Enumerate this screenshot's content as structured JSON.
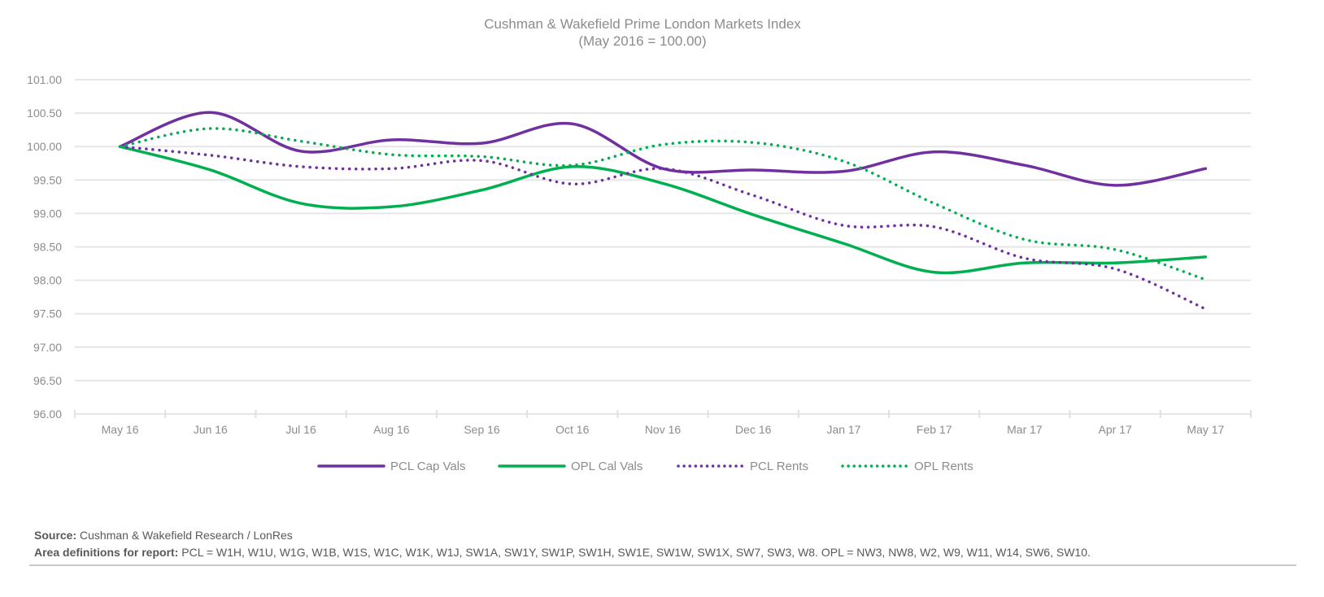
{
  "chart_data": {
    "type": "line",
    "title": "Cushman & Wakefield Prime London Markets Index",
    "subtitle": "(May 2016 = 100.00)",
    "xlabel": "",
    "ylabel": "",
    "ylim": [
      96.0,
      101.0
    ],
    "yticks": [
      "96.00",
      "96.50",
      "97.00",
      "97.50",
      "98.00",
      "98.50",
      "99.00",
      "99.50",
      "100.00",
      "100.50",
      "101.00"
    ],
    "categories": [
      "May 16",
      "Jun 16",
      "Jul 16",
      "Aug 16",
      "Sep 16",
      "Oct 16",
      "Nov 16",
      "Dec 16",
      "Jan 17",
      "Feb 17",
      "Mar 17",
      "Apr 17",
      "May 17"
    ],
    "grid": true,
    "legend_position": "bottom",
    "series": [
      {
        "name": "PCL Cap Vals",
        "color": "#7030a0",
        "style": "solid",
        "values": [
          100.0,
          100.51,
          99.93,
          100.1,
          100.05,
          100.34,
          99.67,
          99.65,
          99.63,
          99.92,
          99.72,
          99.42,
          99.67
        ]
      },
      {
        "name": "OPL Cal Vals",
        "color": "#00b050",
        "style": "solid",
        "values": [
          100.0,
          99.65,
          99.15,
          99.1,
          99.35,
          99.7,
          99.45,
          98.98,
          98.55,
          98.12,
          98.26,
          98.26,
          98.35
        ]
      },
      {
        "name": "PCL Rents",
        "color": "#7030a0",
        "style": "dotted",
        "values": [
          100.0,
          99.87,
          99.7,
          99.67,
          99.79,
          99.44,
          99.67,
          99.27,
          98.82,
          98.8,
          98.33,
          98.17,
          97.57
        ]
      },
      {
        "name": "OPL Rents",
        "color": "#00b050",
        "style": "dotted",
        "values": [
          100.0,
          100.27,
          100.08,
          99.88,
          99.85,
          99.72,
          100.03,
          100.06,
          99.78,
          99.15,
          98.61,
          98.46,
          98.01
        ]
      }
    ]
  },
  "footer": {
    "source_label": "Source:",
    "source_text": " Cushman & Wakefield Research / LonRes",
    "area_label": "Area definitions for report:",
    "area_text": " PCL = W1H, W1U, W1G, W1B, W1S, W1C, W1K, W1J, SW1A, SW1Y, SW1P, SW1H, SW1E, SW1W, SW1X, SW7, SW3, W8.  OPL = NW3, NW8, W2, W9, W11, W14, SW6, SW10."
  }
}
